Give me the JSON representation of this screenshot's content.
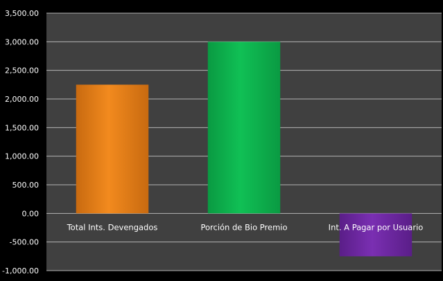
{
  "chart_data": {
    "type": "bar",
    "title": "",
    "xlabel": "",
    "ylabel": "",
    "categories": [
      "Total Ints. Devengados",
      "Porción de Bio Premio",
      "Int. A Pagar por Usuario"
    ],
    "values": [
      2250,
      3000,
      -750
    ],
    "ylim": [
      -1000,
      3500
    ],
    "yticks": [
      3500,
      3000,
      2500,
      2000,
      1500,
      1000,
      500,
      0,
      -500,
      -1000
    ],
    "ytick_labels": [
      "3,500.00",
      "3,000.00",
      "2,500.00",
      "2,000.00",
      "1,500.00",
      "1,000.00",
      "500.00",
      "0.00",
      "-500.00",
      "-1,000.00"
    ],
    "grid": true,
    "legend": "none",
    "colors": {
      "background": "#000000",
      "plot_area": "#404040",
      "gridline": "#b4b4b4",
      "text": "#ffffff",
      "bars": [
        "#f28a1e",
        "#10c055",
        "#7a2fb2"
      ],
      "bars_dark": [
        "#c86a10",
        "#0a9a42",
        "#5a1e88"
      ]
    }
  }
}
